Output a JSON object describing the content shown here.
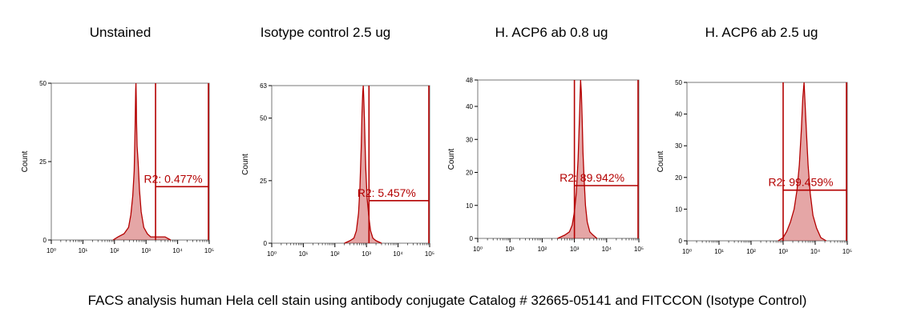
{
  "caption": "FACS analysis human Hela cell stain using antibody conjugate Catalog # 32665-05141 and FITCCON (Isotype Control)",
  "colors": {
    "histogram": "#b40000",
    "axis": "#000000",
    "text": "#000000"
  },
  "chart_data": [
    {
      "type": "area",
      "title": "Unstained",
      "ylabel": "Count",
      "x_scale": "log",
      "xlim": [
        1,
        100000
      ],
      "x_tick_labels": [
        "10⁰",
        "10¹",
        "10²",
        "10³",
        "10⁴",
        "10⁵"
      ],
      "ylim": [
        0,
        50
      ],
      "y_tick_labels": [
        "0",
        "25",
        "50"
      ],
      "y_tick_values": [
        0,
        25,
        50
      ],
      "gate": {
        "label": "R2: 0.477%",
        "x_start": 2000,
        "x_end": 100000,
        "y": 17
      },
      "series": [
        {
          "x": [
            90,
            130,
            200,
            280,
            330,
            380,
            420,
            450,
            470,
            480,
            490,
            500,
            520,
            560,
            620,
            700,
            850,
            1100,
            1400,
            1800,
            2500,
            4000,
            6000
          ],
          "y": [
            0,
            1,
            2,
            4,
            8,
            14,
            22,
            35,
            48,
            50,
            45,
            38,
            30,
            25,
            16,
            9,
            4,
            2,
            1,
            1,
            1,
            1,
            0
          ]
        }
      ]
    },
    {
      "type": "area",
      "title": "Isotype control 2.5 ug",
      "ylabel": "Count",
      "x_scale": "log",
      "xlim": [
        1,
        100000
      ],
      "x_tick_labels": [
        "10⁰",
        "10¹",
        "10²",
        "10³",
        "10⁴",
        "10⁵"
      ],
      "ylim": [
        0,
        63
      ],
      "y_tick_labels": [
        "0",
        "25",
        "50",
        "63"
      ],
      "y_tick_values": [
        0,
        25,
        50,
        63
      ],
      "gate": {
        "label": "R2: 5.457%",
        "x_start": 1200,
        "x_end": 100000,
        "y": 17
      },
      "series": [
        {
          "x": [
            200,
            300,
            400,
            480,
            560,
            620,
            680,
            720,
            760,
            790,
            820,
            860,
            900,
            950,
            1050,
            1200,
            1350,
            1600,
            2000,
            3000
          ],
          "y": [
            0,
            1,
            2,
            5,
            12,
            22,
            38,
            52,
            60,
            63,
            58,
            50,
            40,
            30,
            18,
            10,
            5,
            2,
            1,
            0
          ]
        }
      ]
    },
    {
      "type": "area",
      "title": "H. ACP6 ab 0.8 ug",
      "ylabel": "Count",
      "x_scale": "log",
      "xlim": [
        1,
        100000
      ],
      "x_tick_labels": [
        "10⁰",
        "10¹",
        "10²",
        "10³",
        "10⁴",
        "10⁵"
      ],
      "ylim": [
        0,
        48
      ],
      "y_tick_labels": [
        "0",
        "10",
        "20",
        "30",
        "40",
        "48"
      ],
      "y_tick_values": [
        0,
        10,
        20,
        30,
        40,
        48
      ],
      "gate": {
        "label": "R2: 89.942%",
        "x_start": 1000,
        "x_end": 100000,
        "y": 16
      },
      "series": [
        {
          "x": [
            300,
            500,
            700,
            850,
            1000,
            1150,
            1300,
            1450,
            1550,
            1650,
            1750,
            1850,
            2000,
            2200,
            2500,
            3000,
            3800,
            5000
          ],
          "y": [
            0,
            1,
            2,
            4,
            8,
            14,
            24,
            38,
            48,
            44,
            35,
            26,
            18,
            10,
            5,
            2,
            1,
            0
          ]
        }
      ]
    },
    {
      "type": "area",
      "title": "H. ACP6 ab 2.5 ug",
      "ylabel": "Count",
      "x_scale": "log",
      "xlim": [
        1,
        100000
      ],
      "x_tick_labels": [
        "10⁰",
        "10¹",
        "10²",
        "10³",
        "10⁴",
        "10⁵"
      ],
      "ylim": [
        0,
        50
      ],
      "y_tick_labels": [
        "0",
        "10",
        "20",
        "30",
        "40",
        "50"
      ],
      "y_tick_values": [
        0,
        10,
        20,
        30,
        40,
        50
      ],
      "gate": {
        "label": "R2: 99.459%",
        "x_start": 1000,
        "x_end": 100000,
        "y": 16
      },
      "series": [
        {
          "x": [
            700,
            1000,
            1300,
            1700,
            2200,
            2700,
            3200,
            3700,
            4100,
            4500,
            4900,
            5400,
            6000,
            7000,
            8500,
            11000,
            15000,
            22000
          ],
          "y": [
            0,
            1,
            3,
            6,
            10,
            16,
            24,
            35,
            45,
            50,
            42,
            33,
            24,
            15,
            8,
            4,
            1,
            0
          ]
        }
      ]
    }
  ]
}
